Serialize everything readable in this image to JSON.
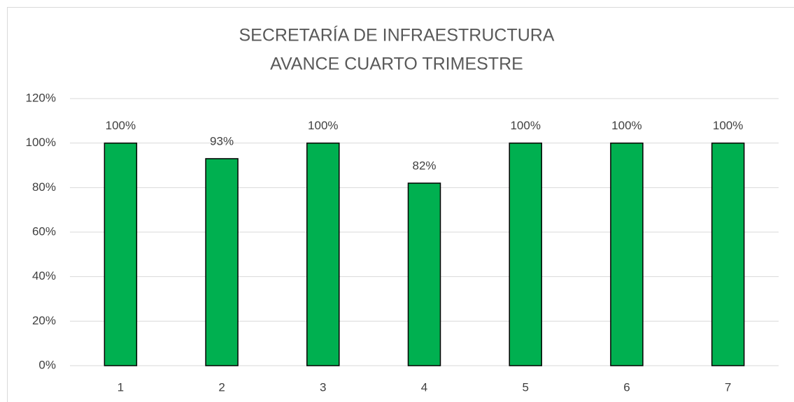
{
  "chart_data": {
    "type": "bar",
    "title": [
      "SECRETARÍA DE INFRAESTRUCTURA",
      "AVANCE CUARTO TRIMESTRE"
    ],
    "categories": [
      "1",
      "2",
      "3",
      "4",
      "5",
      "6",
      "7"
    ],
    "values": [
      100,
      93,
      100,
      82,
      100,
      100,
      100
    ],
    "value_labels": [
      "100%",
      "93%",
      "100%",
      "82%",
      "100%",
      "100%",
      "100%"
    ],
    "color": "#00b050",
    "ylim": [
      0,
      120
    ],
    "yticks": [
      {
        "value": 0,
        "label": "0%"
      },
      {
        "value": 20,
        "label": "20%"
      },
      {
        "value": 40,
        "label": "40%"
      },
      {
        "value": 60,
        "label": "60%"
      },
      {
        "value": 80,
        "label": "80%"
      },
      {
        "value": 100,
        "label": "100%"
      },
      {
        "value": 120,
        "label": "120%"
      }
    ],
    "grid": true
  }
}
